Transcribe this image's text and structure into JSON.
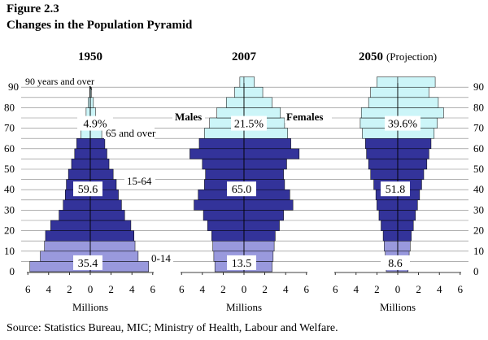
{
  "figure": {
    "label": "Figure 2.3",
    "title": "Changes in the Population Pyramid",
    "source": "Source:  Statistics Bureau, MIC;  Ministry of Health, Labour and Welfare."
  },
  "colors": {
    "group_0_14": "#9999dd",
    "group_15_64": "#33339a",
    "group_65_over": "#ccf5f8",
    "bar_edge": "#000000",
    "grid": "#808080"
  },
  "chart_data": {
    "type": "bar",
    "orientation": "horizontal-pyramid",
    "xlim": [
      -6,
      6
    ],
    "x_ticks": [
      "6",
      "4",
      "2",
      "0",
      "2",
      "4",
      "6"
    ],
    "xlabel": "Millions",
    "age_ticks": [
      "0",
      "10",
      "20",
      "30",
      "40",
      "50",
      "60",
      "70",
      "80",
      "90"
    ],
    "grid": true,
    "age_group_starts": [
      0,
      5,
      10,
      15,
      20,
      25,
      30,
      35,
      40,
      45,
      50,
      55,
      60,
      65,
      70,
      75,
      80,
      85,
      90
    ],
    "panels": [
      {
        "title": "1950",
        "title_suffix": "",
        "males": [
          5.8,
          4.8,
          4.4,
          4.3,
          3.8,
          3.0,
          2.6,
          2.4,
          2.3,
          2.1,
          1.8,
          1.5,
          1.3,
          0.9,
          0.7,
          0.4,
          0.2,
          0.05,
          0.02
        ],
        "females": [
          5.6,
          4.6,
          4.3,
          4.2,
          3.9,
          3.3,
          3.0,
          2.7,
          2.5,
          2.2,
          1.8,
          1.6,
          1.4,
          1.1,
          0.8,
          0.5,
          0.3,
          0.1,
          0.02
        ],
        "shares": {
          "0_14": "35.4",
          "15_64": "59.6",
          "65_over": "4.9%"
        },
        "annotations": {
          "years_over": "90 years and over",
          "group_65": "65 and over",
          "group_15_64": "15-64",
          "group_0_14": "0-14"
        }
      },
      {
        "title": "2007",
        "title_suffix": "",
        "males": [
          2.8,
          2.9,
          3.0,
          3.1,
          3.5,
          3.9,
          4.8,
          4.4,
          3.8,
          3.7,
          4.0,
          5.2,
          4.3,
          3.8,
          3.3,
          2.6,
          1.7,
          0.9,
          0.4
        ],
        "females": [
          2.7,
          2.8,
          2.9,
          3.0,
          3.4,
          3.8,
          4.7,
          4.4,
          3.9,
          3.8,
          4.1,
          5.3,
          4.5,
          4.2,
          3.9,
          3.5,
          2.7,
          1.8,
          1.0
        ],
        "shares": {
          "0_14": "13.5",
          "15_64": "65.0",
          "65_over": "21.5%"
        },
        "annotations": {
          "males": "Males",
          "females": "Females"
        }
      },
      {
        "title": "2050",
        "title_suffix": "(Projection)",
        "males": [
          1.1,
          1.2,
          1.3,
          1.4,
          1.6,
          1.8,
          2.0,
          2.1,
          2.3,
          2.6,
          2.8,
          3.0,
          3.1,
          3.4,
          3.6,
          3.5,
          2.8,
          2.6,
          2.0
        ],
        "females": [
          1.0,
          1.1,
          1.2,
          1.3,
          1.5,
          1.7,
          1.9,
          2.1,
          2.3,
          2.5,
          2.8,
          3.0,
          3.2,
          3.5,
          3.8,
          4.4,
          3.9,
          3.0,
          3.6
        ],
        "shares": {
          "0_14": "8.6",
          "15_64": "51.8",
          "65_over": "39.6%"
        },
        "annotations": {}
      }
    ]
  }
}
